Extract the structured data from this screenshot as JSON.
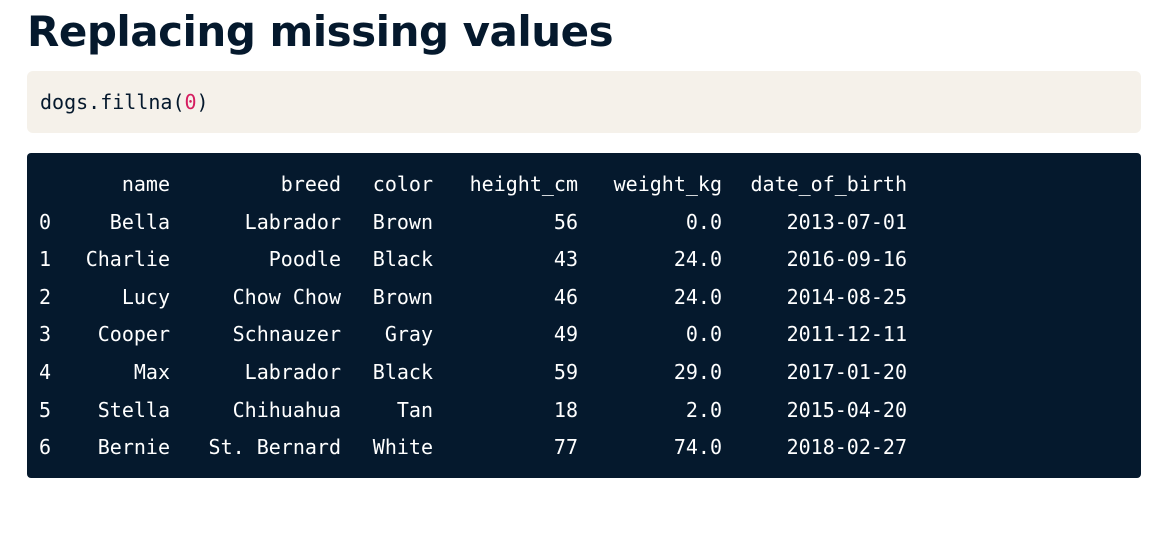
{
  "title": "Replacing missing values",
  "code": {
    "prefix": "dogs.fillna(",
    "arg": "0",
    "suffix": ")"
  },
  "colors": {
    "title": "#05192d",
    "code_background": "#f5f1ea",
    "code_number": "#d51c5f",
    "output_background": "#05192d",
    "output_text": "#ffffff"
  },
  "table": {
    "columns": [
      "name",
      "breed",
      "color",
      "height_cm",
      "weight_kg",
      "date_of_birth"
    ],
    "rows": [
      {
        "index": "0",
        "cells": [
          "Bella",
          "Labrador",
          "Brown",
          "56",
          "0.0",
          "2013-07-01"
        ]
      },
      {
        "index": "1",
        "cells": [
          "Charlie",
          "Poodle",
          "Black",
          "43",
          "24.0",
          "2016-09-16"
        ]
      },
      {
        "index": "2",
        "cells": [
          "Lucy",
          "Chow Chow",
          "Brown",
          "46",
          "24.0",
          "2014-08-25"
        ]
      },
      {
        "index": "3",
        "cells": [
          "Cooper",
          "Schnauzer",
          "Gray",
          "49",
          "0.0",
          "2011-12-11"
        ]
      },
      {
        "index": "4",
        "cells": [
          "Max",
          "Labrador",
          "Black",
          "59",
          "29.0",
          "2017-01-20"
        ]
      },
      {
        "index": "5",
        "cells": [
          "Stella",
          "Chihuahua",
          "Tan",
          "18",
          "2.0",
          "2015-04-20"
        ]
      },
      {
        "index": "6",
        "cells": [
          "Bernie",
          "St. Bernard",
          "White",
          "77",
          "74.0",
          "2018-02-27"
        ]
      }
    ]
  }
}
